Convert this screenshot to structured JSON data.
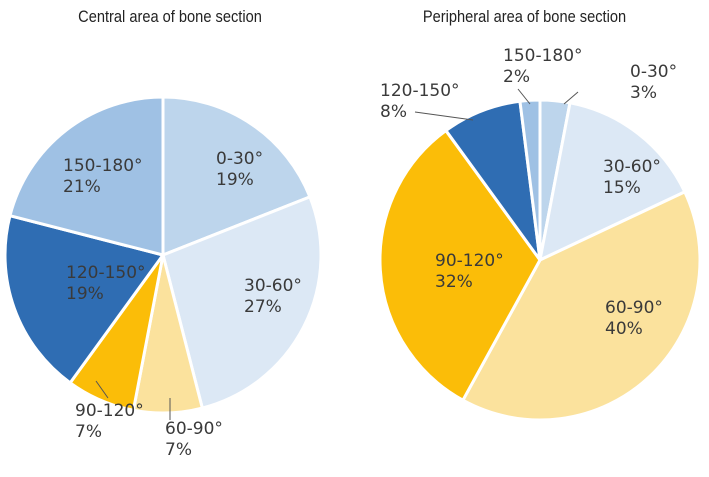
{
  "chart_data": [
    {
      "type": "pie",
      "title": "Central area of bone section",
      "slices": [
        {
          "label": "0-30°",
          "value": 19,
          "value_label": "19%",
          "color": "#bdd5ec"
        },
        {
          "label": "30-60°",
          "value": 27,
          "value_label": "27%",
          "color": "#dce8f5"
        },
        {
          "label": "60-90°",
          "value": 7,
          "value_label": "7%",
          "color": "#fbe29d"
        },
        {
          "label": "90-120°",
          "value": 7,
          "value_label": "7%",
          "color": "#fbbd08"
        },
        {
          "label": "120-150°",
          "value": 19,
          "value_label": "19%",
          "color": "#2f6db3"
        },
        {
          "label": "150-180°",
          "value": 21,
          "value_label": "21%",
          "color": "#9fc1e4"
        }
      ]
    },
    {
      "type": "pie",
      "title": "Peripheral area of bone section",
      "slices": [
        {
          "label": "0-30°",
          "value": 3,
          "value_label": "3%",
          "color": "#bdd5ec"
        },
        {
          "label": "30-60°",
          "value": 15,
          "value_label": "15%",
          "color": "#dce8f5"
        },
        {
          "label": "60-90°",
          "value": 40,
          "value_label": "40%",
          "color": "#fbe29d"
        },
        {
          "label": "90-120°",
          "value": 32,
          "value_label": "32%",
          "color": "#fbbd08"
        },
        {
          "label": "120-150°",
          "value": 8,
          "value_label": "8%",
          "color": "#2f6db3"
        },
        {
          "label": "150-180°",
          "value": 2,
          "value_label": "2%",
          "color": "#9fc1e4"
        }
      ]
    }
  ]
}
